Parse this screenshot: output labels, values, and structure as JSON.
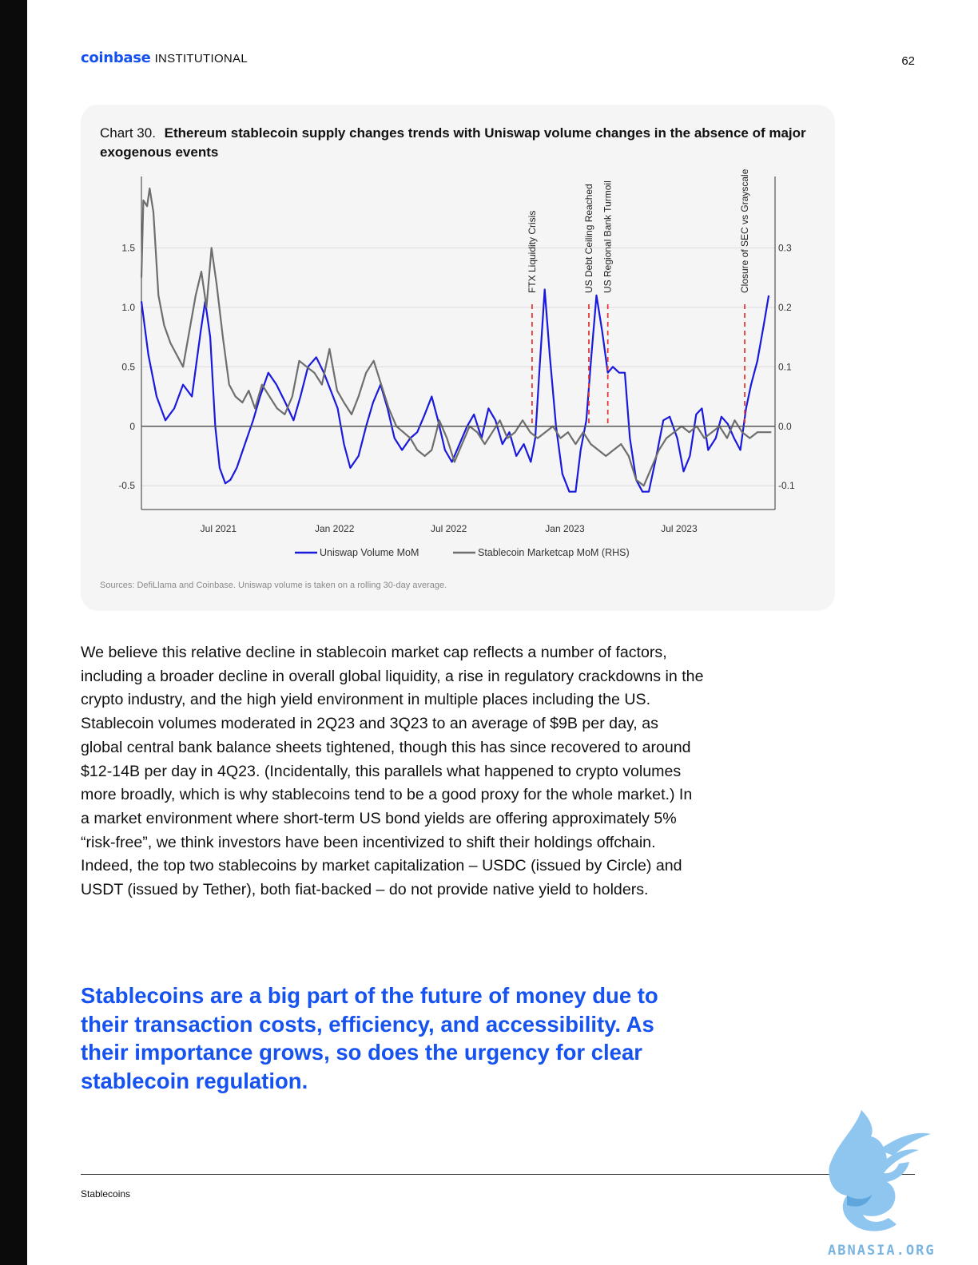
{
  "header": {
    "brand": "coinbase",
    "brand_sub": "INSTITUTIONAL",
    "page_number": "62"
  },
  "chart": {
    "number_label": "Chart 30.",
    "title": "Ethereum stablecoin supply changes trends with Uniswap volume changes in the absence of major exogenous events",
    "source": "Sources: DefiLlama and Coinbase. Uniswap volume is taken on a rolling 30-day average."
  },
  "chart_data": {
    "type": "line",
    "x_range": [
      "2021-03-01",
      "2023-11-30"
    ],
    "x_ticks": [
      {
        "date": "2021-07-01",
        "label": "Jul 2021"
      },
      {
        "date": "2022-01-01",
        "label": "Jan 2022"
      },
      {
        "date": "2022-07-01",
        "label": "Jul 2022"
      },
      {
        "date": "2023-01-01",
        "label": "Jan 2023"
      },
      {
        "date": "2023-07-01",
        "label": "Jul 2023"
      }
    ],
    "y_left": {
      "range": [
        -0.7,
        2.1
      ],
      "ticks": [
        {
          "v": 1.5,
          "label": "1.5"
        },
        {
          "v": 1.0,
          "label": "1.0"
        },
        {
          "v": 0.5,
          "label": "0.5"
        },
        {
          "v": 0,
          "label": "0"
        },
        {
          "v": -0.5,
          "label": "-0.5"
        }
      ]
    },
    "y_right": {
      "range": [
        -0.14,
        0.42
      ],
      "ticks": [
        {
          "v": 0.3,
          "label": "0.3"
        },
        {
          "v": 0.2,
          "label": "0.2"
        },
        {
          "v": 0.1,
          "label": "0.1"
        },
        {
          "v": 0.0,
          "label": "0.0"
        },
        {
          "v": -0.1,
          "label": "-0.1"
        }
      ]
    },
    "grid": "horizontal",
    "legend_position": "bottom-center",
    "series": [
      {
        "name": "Uniswap Volume MoM",
        "axis": "left",
        "color": "#1a1adc",
        "points": [
          [
            "2021-03-01",
            1.05
          ],
          [
            "2021-03-12",
            0.6
          ],
          [
            "2021-03-25",
            0.25
          ],
          [
            "2021-04-08",
            0.05
          ],
          [
            "2021-04-22",
            0.15
          ],
          [
            "2021-05-06",
            0.35
          ],
          [
            "2021-05-20",
            0.25
          ],
          [
            "2021-06-03",
            0.8
          ],
          [
            "2021-06-10",
            1.05
          ],
          [
            "2021-06-18",
            0.75
          ],
          [
            "2021-06-26",
            0.0
          ],
          [
            "2021-07-03",
            -0.35
          ],
          [
            "2021-07-12",
            -0.48
          ],
          [
            "2021-07-20",
            -0.45
          ],
          [
            "2021-07-30",
            -0.35
          ],
          [
            "2021-08-12",
            -0.15
          ],
          [
            "2021-08-25",
            0.05
          ],
          [
            "2021-09-05",
            0.25
          ],
          [
            "2021-09-18",
            0.45
          ],
          [
            "2021-10-01",
            0.35
          ],
          [
            "2021-10-15",
            0.2
          ],
          [
            "2021-10-28",
            0.05
          ],
          [
            "2021-11-08",
            0.25
          ],
          [
            "2021-11-20",
            0.5
          ],
          [
            "2021-12-03",
            0.58
          ],
          [
            "2021-12-15",
            0.45
          ],
          [
            "2021-12-26",
            0.3
          ],
          [
            "2022-01-06",
            0.15
          ],
          [
            "2022-01-16",
            -0.15
          ],
          [
            "2022-01-26",
            -0.35
          ],
          [
            "2022-02-08",
            -0.25
          ],
          [
            "2022-02-20",
            0.0
          ],
          [
            "2022-03-03",
            0.2
          ],
          [
            "2022-03-15",
            0.35
          ],
          [
            "2022-03-26",
            0.15
          ],
          [
            "2022-04-06",
            -0.1
          ],
          [
            "2022-04-18",
            -0.2
          ],
          [
            "2022-05-01",
            -0.1
          ],
          [
            "2022-05-12",
            -0.05
          ],
          [
            "2022-05-24",
            0.1
          ],
          [
            "2022-06-04",
            0.25
          ],
          [
            "2022-06-14",
            0.05
          ],
          [
            "2022-06-25",
            -0.2
          ],
          [
            "2022-07-06",
            -0.3
          ],
          [
            "2022-07-18",
            -0.15
          ],
          [
            "2022-07-30",
            0.0
          ],
          [
            "2022-08-10",
            0.1
          ],
          [
            "2022-08-22",
            -0.1
          ],
          [
            "2022-09-02",
            0.15
          ],
          [
            "2022-09-13",
            0.05
          ],
          [
            "2022-09-24",
            -0.15
          ],
          [
            "2022-10-05",
            -0.05
          ],
          [
            "2022-10-16",
            -0.25
          ],
          [
            "2022-10-28",
            -0.15
          ],
          [
            "2022-11-08",
            -0.3
          ],
          [
            "2022-11-15",
            -0.1
          ],
          [
            "2022-11-22",
            0.5
          ],
          [
            "2022-11-30",
            1.15
          ],
          [
            "2022-12-08",
            0.6
          ],
          [
            "2022-12-18",
            0.0
          ],
          [
            "2022-12-28",
            -0.4
          ],
          [
            "2023-01-08",
            -0.55
          ],
          [
            "2023-01-18",
            -0.55
          ],
          [
            "2023-01-26",
            -0.2
          ],
          [
            "2023-02-04",
            0.05
          ],
          [
            "2023-02-12",
            0.6
          ],
          [
            "2023-02-20",
            1.1
          ],
          [
            "2023-03-01",
            0.8
          ],
          [
            "2023-03-10",
            0.45
          ],
          [
            "2023-03-18",
            0.5
          ],
          [
            "2023-03-28",
            0.45
          ],
          [
            "2023-04-06",
            0.45
          ],
          [
            "2023-04-14",
            -0.1
          ],
          [
            "2023-04-24",
            -0.45
          ],
          [
            "2023-05-04",
            -0.55
          ],
          [
            "2023-05-14",
            -0.55
          ],
          [
            "2023-05-26",
            -0.25
          ],
          [
            "2023-06-06",
            0.05
          ],
          [
            "2023-06-16",
            0.08
          ],
          [
            "2023-06-28",
            -0.1
          ],
          [
            "2023-07-08",
            -0.38
          ],
          [
            "2023-07-18",
            -0.25
          ],
          [
            "2023-07-28",
            0.1
          ],
          [
            "2023-08-06",
            0.15
          ],
          [
            "2023-08-16",
            -0.2
          ],
          [
            "2023-08-28",
            -0.1
          ],
          [
            "2023-09-06",
            0.08
          ],
          [
            "2023-09-16",
            0.02
          ],
          [
            "2023-09-26",
            -0.1
          ],
          [
            "2023-10-06",
            -0.2
          ],
          [
            "2023-10-15",
            0.15
          ],
          [
            "2023-10-23",
            0.35
          ],
          [
            "2023-11-02",
            0.55
          ],
          [
            "2023-11-12",
            0.85
          ],
          [
            "2023-11-20",
            1.1
          ]
        ]
      },
      {
        "name": "Stablecoin Marketcap MoM (RHS)",
        "axis": "right",
        "color": "#6e6e6e",
        "points": [
          [
            "2021-03-01",
            0.25
          ],
          [
            "2021-03-04",
            0.38
          ],
          [
            "2021-03-10",
            0.37
          ],
          [
            "2021-03-14",
            0.4
          ],
          [
            "2021-03-20",
            0.36
          ],
          [
            "2021-03-28",
            0.22
          ],
          [
            "2021-04-06",
            0.17
          ],
          [
            "2021-04-16",
            0.14
          ],
          [
            "2021-04-26",
            0.12
          ],
          [
            "2021-05-06",
            0.1
          ],
          [
            "2021-05-16",
            0.16
          ],
          [
            "2021-05-26",
            0.22
          ],
          [
            "2021-06-04",
            0.26
          ],
          [
            "2021-06-12",
            0.2
          ],
          [
            "2021-06-20",
            0.3
          ],
          [
            "2021-06-28",
            0.24
          ],
          [
            "2021-07-08",
            0.15
          ],
          [
            "2021-07-18",
            0.07
          ],
          [
            "2021-07-28",
            0.05
          ],
          [
            "2021-08-08",
            0.04
          ],
          [
            "2021-08-18",
            0.06
          ],
          [
            "2021-08-28",
            0.03
          ],
          [
            "2021-09-08",
            0.07
          ],
          [
            "2021-09-20",
            0.05
          ],
          [
            "2021-10-02",
            0.03
          ],
          [
            "2021-10-14",
            0.02
          ],
          [
            "2021-10-26",
            0.05
          ],
          [
            "2021-11-06",
            0.11
          ],
          [
            "2021-11-18",
            0.1
          ],
          [
            "2021-11-30",
            0.09
          ],
          [
            "2021-12-12",
            0.07
          ],
          [
            "2021-12-24",
            0.13
          ],
          [
            "2022-01-05",
            0.06
          ],
          [
            "2022-01-16",
            0.04
          ],
          [
            "2022-01-28",
            0.02
          ],
          [
            "2022-02-08",
            0.05
          ],
          [
            "2022-02-20",
            0.09
          ],
          [
            "2022-03-04",
            0.11
          ],
          [
            "2022-03-16",
            0.07
          ],
          [
            "2022-03-28",
            0.03
          ],
          [
            "2022-04-09",
            0.0
          ],
          [
            "2022-04-20",
            -0.01
          ],
          [
            "2022-05-01",
            -0.02
          ],
          [
            "2022-05-12",
            -0.04
          ],
          [
            "2022-05-24",
            -0.05
          ],
          [
            "2022-06-04",
            -0.04
          ],
          [
            "2022-06-16",
            0.01
          ],
          [
            "2022-06-28",
            -0.02
          ],
          [
            "2022-07-10",
            -0.06
          ],
          [
            "2022-07-22",
            -0.03
          ],
          [
            "2022-08-03",
            0.0
          ],
          [
            "2022-08-15",
            -0.01
          ],
          [
            "2022-08-27",
            -0.03
          ],
          [
            "2022-09-08",
            -0.01
          ],
          [
            "2022-09-20",
            0.01
          ],
          [
            "2022-10-02",
            -0.02
          ],
          [
            "2022-10-14",
            -0.01
          ],
          [
            "2022-10-26",
            0.01
          ],
          [
            "2022-11-07",
            -0.01
          ],
          [
            "2022-11-19",
            -0.02
          ],
          [
            "2022-12-01",
            -0.01
          ],
          [
            "2022-12-13",
            0.0
          ],
          [
            "2022-12-25",
            -0.02
          ],
          [
            "2023-01-06",
            -0.01
          ],
          [
            "2023-01-18",
            -0.03
          ],
          [
            "2023-01-30",
            -0.01
          ],
          [
            "2023-02-11",
            -0.03
          ],
          [
            "2023-02-23",
            -0.04
          ],
          [
            "2023-03-07",
            -0.05
          ],
          [
            "2023-03-19",
            -0.04
          ],
          [
            "2023-03-31",
            -0.03
          ],
          [
            "2023-04-12",
            -0.05
          ],
          [
            "2023-04-24",
            -0.09
          ],
          [
            "2023-05-06",
            -0.1
          ],
          [
            "2023-05-18",
            -0.07
          ],
          [
            "2023-05-30",
            -0.04
          ],
          [
            "2023-06-11",
            -0.02
          ],
          [
            "2023-06-23",
            -0.01
          ],
          [
            "2023-07-05",
            0.0
          ],
          [
            "2023-07-17",
            -0.01
          ],
          [
            "2023-07-29",
            0.0
          ],
          [
            "2023-08-10",
            -0.02
          ],
          [
            "2023-08-22",
            -0.01
          ],
          [
            "2023-09-03",
            0.0
          ],
          [
            "2023-09-15",
            -0.02
          ],
          [
            "2023-09-27",
            0.01
          ],
          [
            "2023-10-09",
            -0.01
          ],
          [
            "2023-10-21",
            -0.02
          ],
          [
            "2023-11-02",
            -0.01
          ],
          [
            "2023-11-14",
            -0.01
          ],
          [
            "2023-11-24",
            -0.01
          ]
        ]
      }
    ],
    "events": [
      {
        "date": "2022-11-10",
        "label": "FTX Liquidity Crisis",
        "color": "#e53935"
      },
      {
        "date": "2023-02-08",
        "label": "US Debt Ceiling Reached",
        "color": "#e53935"
      },
      {
        "date": "2023-03-10",
        "label": "US Regional Bank Turmoil",
        "color": "#e53935"
      },
      {
        "date": "2023-10-13",
        "label": "Closure of SEC vs Grayscale",
        "color": "#e53935"
      }
    ]
  },
  "body_paragraph": "We believe this relative decline in stablecoin market cap reflects a number of factors, including a broader decline in overall global liquidity, a rise in regulatory crackdowns in the crypto industry, and the high yield environment in multiple places including the US. Stablecoin volumes moderated in 2Q23 and 3Q23 to an average of $9B per day, as global central bank balance sheets tightened, though this has since recovered to around $12-14B per day in 4Q23. (Incidentally, this parallels what happened to crypto volumes more broadly, which is why stablecoins tend to be a good proxy for the whole market.) In a market environment where short-term US bond yields are offering approximately 5% “risk-free”, we think investors have been incentivized to shift their holdings offchain. Indeed, the top two stablecoins by market capitalization – USDC (issued by Circle) and USDT (issued by Tether), both fiat-backed – do not provide native yield to holders.",
  "pullquote": "Stablecoins are a big part of the future of money due to their transaction costs, efficiency, and accessibility. As their importance grows, so does the urgency for clear stablecoin regulation.",
  "footer": {
    "section": "Stablecoins"
  },
  "watermark": {
    "text": "ABNASIA.ORG",
    "icon": "dragon-logo-icon"
  }
}
